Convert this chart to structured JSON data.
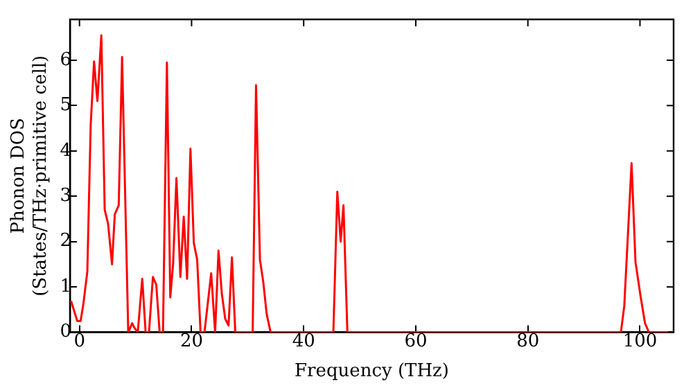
{
  "chart_data": {
    "type": "line",
    "xlabel": "Frequency (THz)",
    "ylabel": "Phonon DOS\n(States/THz·primitive cell)",
    "xlim": [
      -1.7,
      106
    ],
    "ylim": [
      0,
      6.9
    ],
    "xticks": [
      0,
      20,
      40,
      60,
      80,
      100
    ],
    "yticks": [
      0,
      1,
      2,
      3,
      4,
      5,
      6
    ],
    "grid": false,
    "legend": false,
    "marker": "none",
    "line_style": "solid",
    "series": [
      {
        "color": "#ff0000",
        "x": [
          -1.5,
          -0.4,
          0.2,
          0.7,
          1.4,
          2.0,
          2.6,
          3.2,
          3.9,
          4.5,
          5.1,
          5.8,
          6.3,
          7.0,
          7.6,
          8.7,
          9.4,
          9.8,
          10.4,
          11.2,
          11.8,
          12.4,
          13.1,
          13.7,
          14.3,
          14.9,
          15.6,
          16.2,
          16.7,
          17.3,
          18.0,
          18.6,
          19.2,
          19.8,
          20.4,
          21.0,
          21.6,
          22.3,
          23.5,
          24.2,
          24.8,
          25.4,
          26.0,
          26.6,
          27.2,
          27.8,
          30.9,
          31.5,
          32.2,
          32.8,
          33.4,
          34.1,
          45.3,
          46.0,
          46.6,
          47.1,
          47.8,
          96.6,
          97.2,
          98.5,
          99.2,
          100.1,
          100.9,
          101.6,
          105
        ],
        "values": [
          0.69,
          0.25,
          0.25,
          0.63,
          1.34,
          4.57,
          5.97,
          5.1,
          6.55,
          2.7,
          2.4,
          1.5,
          2.6,
          2.8,
          6.07,
          0,
          0.2,
          0.1,
          0,
          1.18,
          0,
          0,
          1.22,
          1.05,
          0,
          0,
          5.95,
          0.77,
          1.5,
          3.4,
          1.22,
          2.55,
          1.18,
          4.05,
          1.97,
          1.6,
          0,
          0,
          1.3,
          0,
          1.8,
          0.85,
          0.3,
          0.15,
          1.65,
          0,
          0,
          5.45,
          1.6,
          1.1,
          0.4,
          0,
          0,
          3.1,
          2.0,
          2.8,
          0,
          0,
          0.58,
          3.73,
          1.55,
          0.8,
          0.2,
          0,
          0
        ]
      }
    ]
  }
}
